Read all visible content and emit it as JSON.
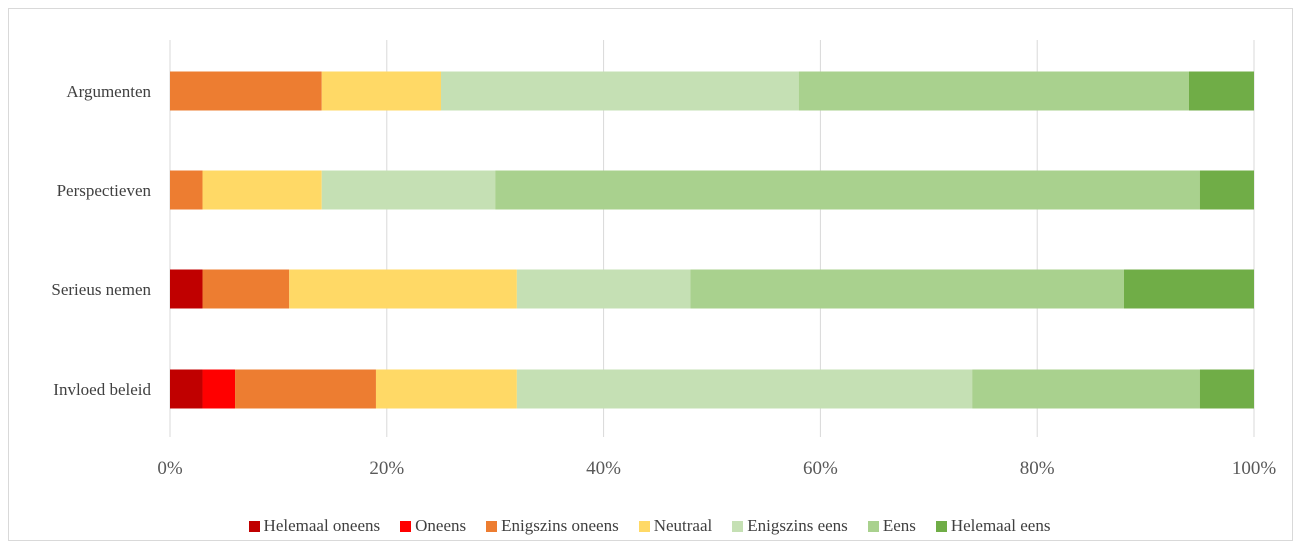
{
  "chart_data": {
    "type": "bar",
    "orientation": "horizontal",
    "stacked": true,
    "percent": true,
    "categories": [
      "Argumenten",
      "Perspectieven",
      "Serieus nemen",
      "Invloed beleid"
    ],
    "series": [
      {
        "name": "Helemaal oneens",
        "color": "#c00000",
        "values": [
          0,
          0,
          3,
          3
        ]
      },
      {
        "name": "Oneens",
        "color": "#ff0000",
        "values": [
          0,
          0,
          0,
          3
        ]
      },
      {
        "name": "Enigszins oneens",
        "color": "#ed7d31",
        "values": [
          14,
          3,
          8,
          13
        ]
      },
      {
        "name": "Neutraal",
        "color": "#ffd966",
        "values": [
          11,
          11,
          21,
          13
        ]
      },
      {
        "name": "Enigszins eens",
        "color": "#c5e0b4",
        "values": [
          33,
          16,
          16,
          42
        ]
      },
      {
        "name": "Eens",
        "color": "#a9d18e",
        "values": [
          36,
          65,
          40,
          21
        ]
      },
      {
        "name": "Helemaal eens",
        "color": "#70ad47",
        "values": [
          6,
          5,
          12,
          5
        ]
      }
    ],
    "x_ticks": [
      "0%",
      "20%",
      "40%",
      "60%",
      "80%",
      "100%"
    ],
    "xlim": [
      0,
      100
    ],
    "grid": true,
    "legend_position": "bottom"
  }
}
